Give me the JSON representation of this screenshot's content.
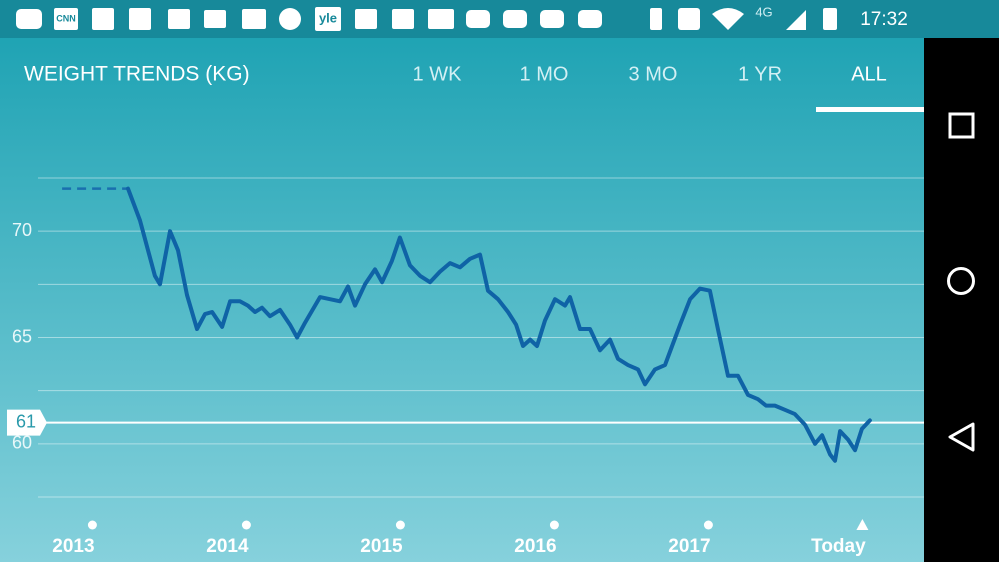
{
  "status_bar": {
    "icon_texts": [
      "CNN",
      "yle"
    ],
    "network": "4G",
    "time": "17:32"
  },
  "header": {
    "title": "WEIGHT TRENDS (KG)",
    "tabs": [
      "1 WK",
      "1 MO",
      "3 MO",
      "1 YR",
      "ALL"
    ],
    "selected_tab": 4
  },
  "chart_data": {
    "type": "line",
    "xlim": [
      2012.4,
      2018.4
    ],
    "xticks": [
      2013,
      2014,
      2015,
      2016,
      2017,
      {
        "value": 2018,
        "label": "Today"
      }
    ],
    "ylim": [
      57.5,
      72.5
    ],
    "yticks": [
      60,
      65,
      70
    ],
    "minor_yticks": [
      57.5,
      62.5,
      67.5,
      72.5
    ],
    "grid": true,
    "current_value": 61,
    "series": [
      {
        "color": "#1a6fae",
        "dashed": true,
        "x": [
          2012.803,
          2013.231
        ],
        "values": [
          72.0,
          72.0
        ]
      },
      {
        "color": "#0f63a6",
        "dashed": false,
        "x": [
          2013.231,
          2013.309,
          2013.406,
          2013.439,
          2013.504,
          2013.556,
          2013.614,
          2013.679,
          2013.731,
          2013.777,
          2013.842,
          2013.894,
          2013.958,
          2014.01,
          2014.056,
          2014.101,
          2014.153,
          2014.218,
          2014.283,
          2014.329,
          2014.381,
          2014.478,
          2014.543,
          2014.608,
          2014.66,
          2014.705,
          2014.77,
          2014.835,
          2014.881,
          2014.945,
          2014.997,
          2015.062,
          2015.127,
          2015.192,
          2015.257,
          2015.322,
          2015.387,
          2015.452,
          2015.517,
          2015.569,
          2015.634,
          2015.699,
          2015.751,
          2015.796,
          2015.842,
          2015.887,
          2015.939,
          2016.004,
          2016.069,
          2016.101,
          2016.166,
          2016.231,
          2016.296,
          2016.361,
          2016.413,
          2016.478,
          2016.543,
          2016.588,
          2016.653,
          2016.718,
          2016.764,
          2016.816,
          2016.881,
          2016.945,
          2017.01,
          2017.062,
          2017.127,
          2017.192,
          2017.257,
          2017.322,
          2017.374,
          2017.432,
          2017.497,
          2017.562,
          2017.627,
          2017.692,
          2017.738,
          2017.79,
          2017.822,
          2017.855,
          2017.907,
          2017.952,
          2017.997,
          2018.049
        ],
        "values": [
          72.0,
          70.5,
          67.9,
          67.5,
          70.0,
          69.1,
          67.0,
          65.4,
          66.1,
          66.2,
          65.5,
          66.7,
          66.7,
          66.5,
          66.2,
          66.4,
          66.0,
          66.3,
          65.6,
          65.0,
          65.7,
          66.9,
          66.8,
          66.7,
          67.4,
          66.5,
          67.5,
          68.2,
          67.6,
          68.6,
          69.7,
          68.4,
          67.9,
          67.6,
          68.1,
          68.5,
          68.3,
          68.7,
          68.9,
          67.2,
          66.8,
          66.2,
          65.6,
          64.6,
          64.9,
          64.6,
          65.8,
          66.8,
          66.5,
          66.9,
          65.4,
          65.4,
          64.4,
          64.9,
          64.0,
          63.7,
          63.5,
          62.8,
          63.5,
          63.7,
          64.6,
          65.6,
          66.8,
          67.3,
          67.2,
          65.4,
          63.2,
          63.2,
          62.3,
          62.1,
          61.8,
          61.8,
          61.6,
          61.4,
          60.9,
          60.0,
          60.4,
          59.5,
          59.2,
          60.6,
          60.2,
          59.7,
          60.7,
          61.1
        ]
      }
    ]
  }
}
